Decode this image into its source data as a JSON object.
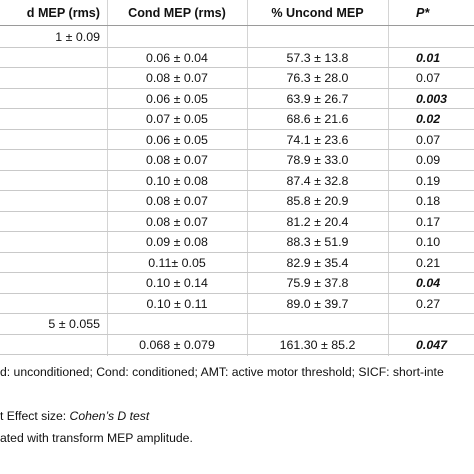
{
  "header": {
    "col1": "d MEP (rms)",
    "col2": "Cond MEP (rms)",
    "col3": "% Uncond MEP",
    "col4": "P*"
  },
  "rows": [
    {
      "c1": "1 ± 0.09",
      "c2": "",
      "c3": "",
      "c4": "",
      "bold": false
    },
    {
      "c1": "",
      "c2": "0.06 ± 0.04",
      "c3": "57.3 ± 13.8",
      "c4": "0.01",
      "bold": true
    },
    {
      "c1": "",
      "c2": "0.08 ± 0.07",
      "c3": "76.3 ± 28.0",
      "c4": "0.07",
      "bold": false
    },
    {
      "c1": "",
      "c2": "0.06 ± 0.05",
      "c3": "63.9 ± 26.7",
      "c4": "0.003",
      "bold": true
    },
    {
      "c1": "",
      "c2": "0.07 ± 0.05",
      "c3": "68.6 ± 21.6",
      "c4": "0.02",
      "bold": true
    },
    {
      "c1": "",
      "c2": "0.06 ± 0.05",
      "c3": "74.1 ± 23.6",
      "c4": "0.07",
      "bold": false
    },
    {
      "c1": "",
      "c2": "0.08 ± 0.07",
      "c3": "78.9 ± 33.0",
      "c4": "0.09",
      "bold": false
    },
    {
      "c1": "",
      "c2": "0.10 ± 0.08",
      "c3": "87.4 ± 32.8",
      "c4": "0.19",
      "bold": false
    },
    {
      "c1": "",
      "c2": "0.08 ± 0.07",
      "c3": "85.8 ± 20.9",
      "c4": "0.18",
      "bold": false
    },
    {
      "c1": "",
      "c2": "0.08 ± 0.07",
      "c3": "81.2 ± 20.4",
      "c4": "0.17",
      "bold": false
    },
    {
      "c1": "",
      "c2": "0.09 ± 0.08",
      "c3": "88.3 ± 51.9",
      "c4": "0.10",
      "bold": false
    },
    {
      "c1": "",
      "c2": "0.11± 0.05",
      "c3": "82.9 ± 35.4",
      "c4": "0.21",
      "bold": false
    },
    {
      "c1": "",
      "c2": "0.10 ± 0.14",
      "c3": "75.9 ± 37.8",
      "c4": "0.04",
      "bold": true
    },
    {
      "c1": "",
      "c2": "0.10 ± 0.11",
      "c3": "89.0 ± 39.7",
      "c4": "0.27",
      "bold": false
    },
    {
      "c1": "5 ± 0.055",
      "c2": "",
      "c3": "",
      "c4": "",
      "bold": false
    },
    {
      "c1": "",
      "c2": "0.068 ± 0.079",
      "c3": "161.30 ± 85.2",
      "c4": "0.047",
      "bold": true
    }
  ],
  "footnotes": {
    "line1": "d: unconditioned; Cond: conditioned; AMT: active motor threshold; SICF: short-inte",
    "line2_prefix": "t Effect size: ",
    "line2_italic": "Cohen’s D test",
    "line3": "ated with transform MEP amplitude."
  }
}
